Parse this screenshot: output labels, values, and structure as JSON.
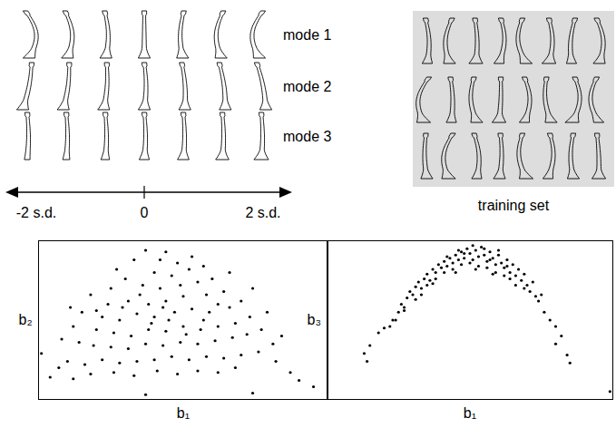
{
  "figure": {
    "modes": [
      "mode 1",
      "mode 2",
      "mode 3"
    ],
    "sd_axis": [
      "-2 s.d.",
      "0",
      "2 s.d."
    ],
    "training_set": "training set"
  },
  "chart_data": [
    {
      "type": "scatter",
      "x_label": "b₁",
      "y_label": "b₂",
      "color": "#000000",
      "marker": "dot",
      "xlim": [
        0,
        100
      ],
      "ylim": [
        0,
        100
      ],
      "xticks": [],
      "yticks": [],
      "tick_labels": false,
      "x": [
        4,
        12,
        1,
        87,
        81,
        74,
        37,
        37,
        44,
        48,
        33,
        40,
        46,
        52,
        30,
        25,
        36,
        42,
        55,
        60,
        64,
        58,
        50,
        44,
        38,
        31,
        24,
        18,
        15,
        22,
        28,
        34,
        40,
        47,
        53,
        59,
        66,
        70,
        73,
        68,
        62,
        56,
        50,
        44,
        38,
        32,
        26,
        20,
        12,
        8,
        14,
        19,
        25,
        31,
        37,
        43,
        49,
        55,
        61,
        67,
        72,
        77,
        76,
        70,
        64,
        58,
        52,
        46,
        40,
        34,
        28,
        22,
        16,
        10,
        7,
        18,
        26,
        33,
        41,
        48,
        55,
        62,
        68,
        82,
        90,
        95,
        53,
        57,
        27,
        42,
        49,
        35,
        62,
        20,
        79,
        74,
        66,
        11,
        84,
        45,
        39,
        51,
        29,
        57,
        43
      ],
      "values": [
        14,
        13,
        29,
        17,
        35,
        4,
        3,
        94,
        93,
        86,
        88,
        80,
        78,
        82,
        76,
        70,
        72,
        70,
        74,
        76,
        68,
        66,
        65,
        62,
        60,
        62,
        60,
        66,
        55,
        52,
        50,
        54,
        52,
        55,
        57,
        55,
        58,
        62,
        52,
        48,
        46,
        44,
        46,
        43,
        44,
        40,
        42,
        44,
        46,
        38,
        36,
        34,
        33,
        32,
        35,
        34,
        36,
        35,
        37,
        39,
        41,
        44,
        30,
        28,
        26,
        27,
        25,
        27,
        25,
        24,
        23,
        25,
        22,
        24,
        20,
        16,
        17,
        15,
        18,
        16,
        18,
        17,
        20,
        24,
        12,
        8,
        90,
        84,
        82,
        88,
        72,
        66,
        60,
        56,
        55,
        70,
        80,
        58,
        40,
        50,
        48,
        41,
        58,
        50,
        58
      ]
    },
    {
      "type": "scatter",
      "x_label": "b₁",
      "y_label": "b₃",
      "color": "#000000",
      "marker": "dot",
      "xlim": [
        0,
        100
      ],
      "ylim": [
        0,
        100
      ],
      "xticks": [],
      "yticks": [],
      "tick_labels": false,
      "x": [
        14,
        15,
        13,
        18,
        20,
        22,
        23,
        25,
        26,
        27,
        28,
        29,
        30,
        31,
        32,
        33,
        34,
        35,
        36,
        37,
        38,
        39,
        40,
        41,
        42,
        43,
        44,
        45,
        46,
        47,
        48,
        49,
        50,
        51,
        52,
        53,
        54,
        55,
        56,
        57,
        58,
        59,
        60,
        61,
        62,
        63,
        64,
        65,
        66,
        67,
        68,
        69,
        70,
        71,
        72,
        73,
        74,
        75,
        76,
        78,
        80,
        80,
        82,
        84,
        85,
        99,
        35,
        38,
        41,
        44,
        47,
        50,
        53,
        56,
        59,
        62,
        42,
        48,
        55,
        60,
        33,
        37,
        45,
        52,
        58,
        64,
        66,
        31,
        27,
        24,
        51,
        46,
        57,
        63,
        69
      ],
      "values": [
        24,
        34,
        29,
        42,
        45,
        46,
        50,
        55,
        60,
        58,
        64,
        68,
        66,
        71,
        74,
        70,
        76,
        79,
        75,
        82,
        80,
        85,
        83,
        87,
        84,
        89,
        86,
        91,
        88,
        93,
        89,
        95,
        92,
        88,
        94,
        90,
        96,
        91,
        87,
        93,
        89,
        85,
        91,
        86,
        83,
        88,
        80,
        85,
        78,
        82,
        75,
        79,
        72,
        68,
        74,
        65,
        62,
        66,
        55,
        50,
        35,
        46,
        40,
        28,
        23,
        5,
        72,
        76,
        80,
        82,
        85,
        86,
        84,
        83,
        80,
        78,
        90,
        92,
        95,
        94,
        66,
        73,
        80,
        82,
        79,
        76,
        72,
        63,
        56,
        50,
        97,
        94,
        88,
        84,
        70
      ]
    }
  ]
}
